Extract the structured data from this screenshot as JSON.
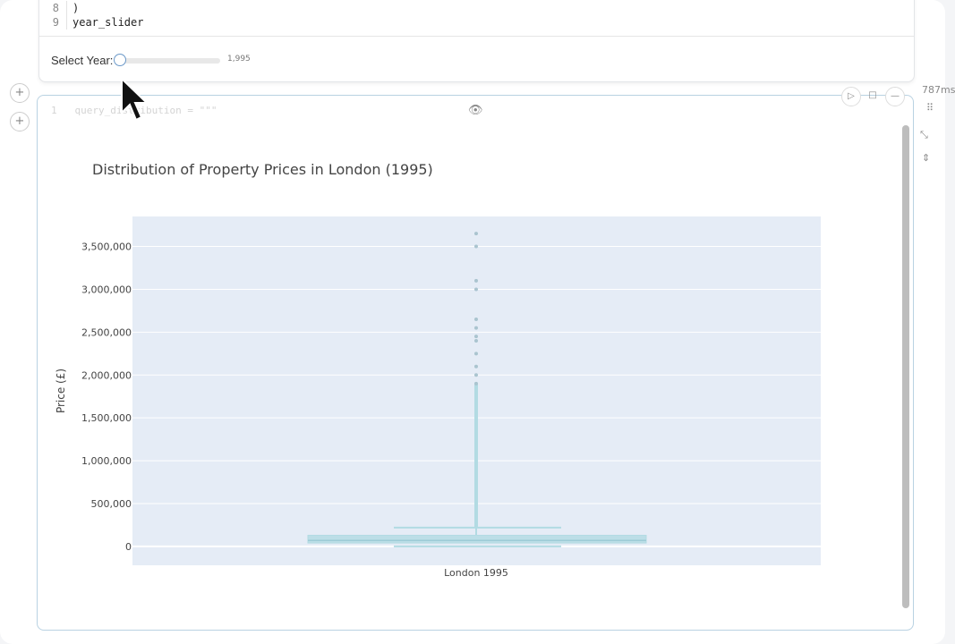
{
  "code": {
    "lines": [
      {
        "n": "8",
        "text": ")"
      },
      {
        "n": "9",
        "text": "year_slider"
      }
    ]
  },
  "slider": {
    "label": "Select Year:",
    "value": "1,995",
    "fraction": 0
  },
  "cell2": {
    "ghost_code_line": "1",
    "ghost_code": "query_distribution = \"\"\""
  },
  "side": {
    "time": "787ms"
  },
  "icons": {
    "add": "plus-icon",
    "run": "play-icon",
    "stop": "square-icon",
    "collapse": "minus-icon",
    "visibility": "eye-icon",
    "drag": "drag-handle-icon",
    "expand": "expand-icon",
    "fold": "chevron-updown-icon"
  },
  "chart_data": {
    "type": "box",
    "title": "Distribution of Property Prices in London (1995)",
    "ylabel": "Price (£)",
    "xlabel": "",
    "categories": [
      "London 1995"
    ],
    "ylim": [
      -220000,
      3850000
    ],
    "yticks": [
      0,
      500000,
      1000000,
      1500000,
      2000000,
      2500000,
      3000000,
      3500000
    ],
    "ytick_labels": [
      "0",
      "500,000",
      "1,000,000",
      "1,500,000",
      "2,000,000",
      "2,500,000",
      "3,000,000",
      "3,500,000"
    ],
    "box": {
      "lower_fence": 0,
      "q1": 40000,
      "median": 70000,
      "q3": 130000,
      "upper_fence": 220000
    },
    "outliers_max": 3650000,
    "outliers_sample": [
      3650000,
      3500000,
      3100000,
      3000000,
      2650000,
      2550000,
      2450000,
      2400000,
      2250000,
      2100000,
      2000000,
      1900000
    ],
    "colors": {
      "box": "#b2dbe3",
      "plot_bg": "#e5ecf6",
      "outlier": "#aac4cf"
    },
    "grid": true
  }
}
